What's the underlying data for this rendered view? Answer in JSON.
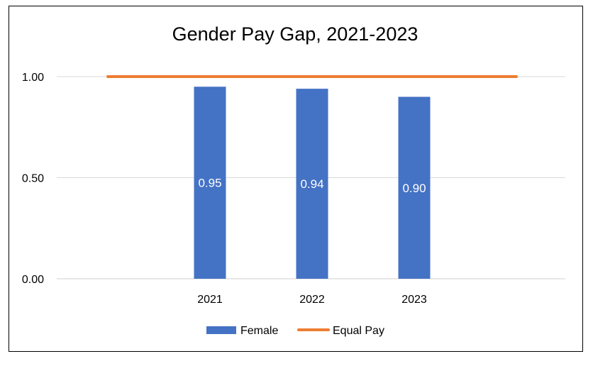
{
  "chart_data": {
    "type": "bar",
    "title": "Gender Pay Gap, 2021-2023",
    "categories": [
      "2021",
      "2022",
      "2023"
    ],
    "series": [
      {
        "name": "Female",
        "type": "bar",
        "values": [
          0.95,
          0.94,
          0.9
        ],
        "data_labels": [
          "0.95",
          "0.94",
          "0.90"
        ],
        "color": "#4472C4"
      },
      {
        "name": "Equal Pay",
        "type": "line",
        "values": [
          1.0,
          1.0,
          1.0
        ],
        "color": "#ED7D31"
      }
    ],
    "ylim": [
      0,
      1.0
    ],
    "yticks": [
      "0.00",
      "0.50",
      "1.00"
    ],
    "grid": true,
    "legend": "bottom"
  }
}
